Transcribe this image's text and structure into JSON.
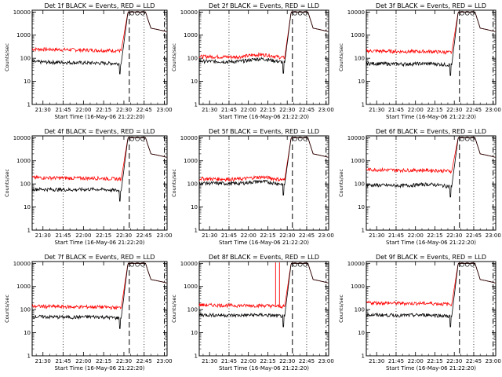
{
  "chart_data": {
    "type": "line",
    "y_scale": "log",
    "ylim": [
      1,
      12000
    ],
    "x_minutes_after_21": [
      30,
      45,
      60,
      75,
      90,
      105,
      120
    ],
    "xlim_minutes_after_21": [
      22,
      122
    ],
    "legend": "in-title",
    "grid": false,
    "series_colors": {
      "events": "#000000",
      "lld": "#ff0000"
    },
    "shared": {
      "xlabel": "Start Time (16-May-06 21:22:20)",
      "ylabel": "Counts/sec",
      "x_ticks": [
        "21:30",
        "21:45",
        "22:00",
        "22:15",
        "22:30",
        "22:45",
        "23:00"
      ],
      "y_ticks": [
        "1",
        "10",
        "100",
        "1000",
        "10000"
      ]
    },
    "series_description": [
      "BLACK = Events",
      "RED = LLD"
    ],
    "panels": [
      {
        "det": "1f",
        "title": "Det 1f BLACK = Events, RED = LLD",
        "events_base": 70,
        "lld_base": 250,
        "events_bump": 1.0,
        "lld_bump": 1.0,
        "spikes": []
      },
      {
        "det": "2f",
        "title": "Det 2f BLACK = Events, RED = LLD",
        "events_base": 75,
        "lld_base": 120,
        "events_bump": 1.4,
        "lld_bump": 1.35,
        "spikes": []
      },
      {
        "det": "3f",
        "title": "Det 3f BLACK = Events, RED = LLD",
        "events_base": 60,
        "lld_base": 210,
        "events_bump": 1.1,
        "lld_bump": 1.05,
        "spikes": []
      },
      {
        "det": "4f",
        "title": "Det 4f BLACK = Events, RED = LLD",
        "events_base": 60,
        "lld_base": 190,
        "events_bump": 1.1,
        "lld_bump": 1.05,
        "spikes": []
      },
      {
        "det": "5f",
        "title": "Det 5f BLACK = Events, RED = LLD",
        "events_base": 110,
        "lld_base": 170,
        "events_bump": 1.3,
        "lld_bump": 1.3,
        "spikes": []
      },
      {
        "det": "6f",
        "title": "Det 6f BLACK = Events, RED = LLD",
        "events_base": 90,
        "lld_base": 420,
        "events_bump": 1.2,
        "lld_bump": 1.05,
        "spikes": []
      },
      {
        "det": "7f",
        "title": "Det 7f BLACK = Events, RED = LLD",
        "events_base": 50,
        "lld_base": 140,
        "events_bump": 1.1,
        "lld_bump": 1.05,
        "spikes": []
      },
      {
        "det": "8f",
        "title": "Det 8f BLACK = Events, RED = LLD",
        "events_base": 60,
        "lld_base": 160,
        "events_bump": 1.1,
        "lld_bump": 1.05,
        "spikes": [
          81,
          84
        ]
      },
      {
        "det": "9f",
        "title": "Det 9f BLACK = Events, RED = LLD",
        "events_base": 60,
        "lld_base": 200,
        "events_bump": 1.1,
        "lld_bump": 1.05,
        "spikes": []
      }
    ]
  }
}
